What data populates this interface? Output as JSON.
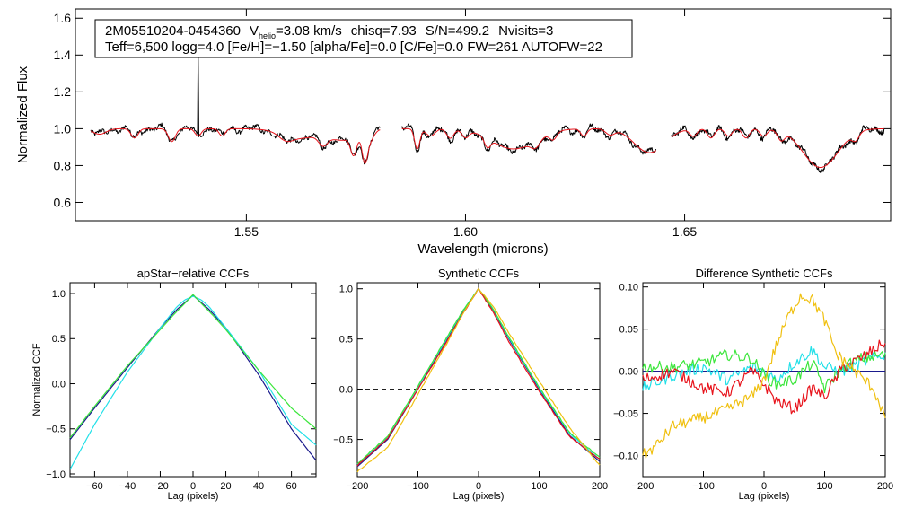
{
  "header": {
    "star_id": "2M05510204-0454360",
    "vhelio_symbol": "V",
    "vhelio_sub": "helio",
    "vhelio_value": "=3.08 km/s",
    "chisq": "chisq=7.93",
    "snr": "S/N=499.2",
    "nvisits": "Nvisits=3",
    "params_line": "Teff=6,500 logg=4.0 [Fe/H]=−1.50 [alpha/Fe]=0.0 [C/Fe]=0.0 FW=261 AUTOFW=22"
  },
  "colors": {
    "observed": "#000000",
    "model": "#e8141c",
    "series_blue": "#1a1a8c",
    "series_cyan": "#22e0e8",
    "series_green": "#3ce63c",
    "series_red": "#e8141c",
    "series_orange": "#f0c010"
  },
  "chart_data": [
    {
      "type": "line",
      "name": "spectrum",
      "title": "",
      "xlabel": "Wavelength (microns)",
      "ylabel": "Normalized Flux",
      "xlim": [
        1.511,
        1.697
      ],
      "ylim": [
        0.5,
        1.65
      ],
      "xticks": [
        1.55,
        1.6,
        1.65
      ],
      "xtick_labels": [
        "1.55",
        "1.60",
        "1.65"
      ],
      "yticks": [
        0.6,
        0.8,
        1.0,
        1.2,
        1.4,
        1.6
      ],
      "ytick_labels": [
        "0.6",
        "0.8",
        "1.0",
        "1.2",
        "1.4",
        "1.6"
      ],
      "chips": [
        [
          1.5145,
          1.5805
        ],
        [
          1.5855,
          1.6435
        ],
        [
          1.647,
          1.6955
        ]
      ],
      "spike": {
        "x": 1.539,
        "y": 1.44
      },
      "absorption_lines": [
        {
          "x": 1.5165,
          "depth": 0.03,
          "width": 0.0015
        },
        {
          "x": 1.5245,
          "depth": 0.05,
          "width": 0.0008
        },
        {
          "x": 1.533,
          "depth": 0.07,
          "width": 0.0008
        },
        {
          "x": 1.539,
          "depth": 0.04,
          "width": 0.0007
        },
        {
          "x": 1.5445,
          "depth": 0.04,
          "width": 0.0007
        },
        {
          "x": 1.559,
          "depth": 0.03,
          "width": 0.0015
        },
        {
          "x": 1.562,
          "depth": 0.05,
          "width": 0.004
        },
        {
          "x": 1.5675,
          "depth": 0.05,
          "width": 0.001
        },
        {
          "x": 1.572,
          "depth": 0.06,
          "width": 0.0035
        },
        {
          "x": 1.5745,
          "depth": 0.1,
          "width": 0.0007
        },
        {
          "x": 1.577,
          "depth": 0.13,
          "width": 0.0006
        },
        {
          "x": 1.578,
          "depth": 0.06,
          "width": 0.001
        },
        {
          "x": 1.589,
          "depth": 0.11,
          "width": 0.0006
        },
        {
          "x": 1.592,
          "depth": 0.04,
          "width": 0.001
        },
        {
          "x": 1.5965,
          "depth": 0.05,
          "width": 0.0008
        },
        {
          "x": 1.6,
          "depth": 0.04,
          "width": 0.0008
        },
        {
          "x": 1.605,
          "depth": 0.05,
          "width": 0.0007
        },
        {
          "x": 1.611,
          "depth": 0.11,
          "width": 0.005
        },
        {
          "x": 1.616,
          "depth": 0.04,
          "width": 0.001
        },
        {
          "x": 1.62,
          "depth": 0.04,
          "width": 0.0008
        },
        {
          "x": 1.627,
          "depth": 0.04,
          "width": 0.0007
        },
        {
          "x": 1.633,
          "depth": 0.03,
          "width": 0.001
        },
        {
          "x": 1.642,
          "depth": 0.13,
          "width": 0.0035
        },
        {
          "x": 1.652,
          "depth": 0.04,
          "width": 0.0008
        },
        {
          "x": 1.656,
          "depth": 0.05,
          "width": 0.0008
        },
        {
          "x": 1.66,
          "depth": 0.04,
          "width": 0.0008
        },
        {
          "x": 1.664,
          "depth": 0.05,
          "width": 0.0008
        },
        {
          "x": 1.668,
          "depth": 0.04,
          "width": 0.0008
        },
        {
          "x": 1.672,
          "depth": 0.05,
          "width": 0.0008
        },
        {
          "x": 1.681,
          "depth": 0.21,
          "width": 0.004
        },
        {
          "x": 1.689,
          "depth": 0.04,
          "width": 0.0008
        }
      ],
      "series": [
        {
          "name": "observed",
          "color_key": "observed",
          "noise": 0.012
        },
        {
          "name": "model",
          "color_key": "model",
          "noise": 0.0
        }
      ]
    },
    {
      "type": "line",
      "name": "apstar_ccf",
      "title": "apStar−relative CCFs",
      "xlabel": "Lag (pixels)",
      "ylabel": "Normalized CCF",
      "xlim": [
        -75,
        75
      ],
      "ylim": [
        -1.03,
        1.12
      ],
      "xticks": [
        -60,
        -40,
        -20,
        0,
        20,
        40,
        60
      ],
      "xtick_labels": [
        "−60",
        "−40",
        "−20",
        "0",
        "20",
        "40",
        "60"
      ],
      "yticks": [
        -1.0,
        -0.5,
        0.0,
        0.5,
        1.0
      ],
      "ytick_labels": [
        "−1.0",
        "−0.5",
        "0.0",
        "0.5",
        "1.0"
      ],
      "series": [
        {
          "name": "blue",
          "color_key": "series_blue",
          "x": [
            -75,
            -60,
            -40,
            -20,
            -10,
            -5,
            0,
            5,
            10,
            20,
            40,
            60,
            75
          ],
          "y": [
            -0.62,
            -0.27,
            0.18,
            0.62,
            0.82,
            0.9,
            0.98,
            0.9,
            0.82,
            0.62,
            0.1,
            -0.5,
            -0.85
          ]
        },
        {
          "name": "cyan",
          "color_key": "series_cyan",
          "x": [
            -75,
            -60,
            -40,
            -20,
            -10,
            -5,
            0,
            5,
            10,
            20,
            40,
            60,
            75
          ],
          "y": [
            -0.95,
            -0.45,
            0.13,
            0.62,
            0.85,
            0.93,
            0.97,
            0.93,
            0.85,
            0.62,
            0.15,
            -0.45,
            -0.68
          ]
        },
        {
          "name": "green",
          "color_key": "series_green",
          "x": [
            -75,
            -60,
            -40,
            -20,
            -10,
            -5,
            0,
            5,
            10,
            20,
            40,
            60,
            75
          ],
          "y": [
            -0.6,
            -0.25,
            0.2,
            0.6,
            0.8,
            0.89,
            0.99,
            0.89,
            0.8,
            0.6,
            0.15,
            -0.27,
            -0.5
          ]
        }
      ]
    },
    {
      "type": "line",
      "name": "synthetic_ccf",
      "title": "Synthetic CCFs",
      "xlabel": "Lag (pixels)",
      "ylabel": "",
      "xlim": [
        -200,
        200
      ],
      "ylim": [
        -0.87,
        1.06
      ],
      "xticks": [
        -200,
        -100,
        0,
        100,
        200
      ],
      "xtick_labels": [
        "−200",
        "−100",
        "0",
        "100",
        "200"
      ],
      "yticks": [
        -0.5,
        0.0,
        0.5,
        1.0
      ],
      "ytick_labels": [
        "−0.5",
        "0.0",
        "0.5",
        "1.0"
      ],
      "zero_line": 0.0,
      "series": [
        {
          "name": "blue",
          "color_key": "series_blue",
          "x": [
            -200,
            -150,
            -100,
            -50,
            -25,
            0,
            25,
            50,
            100,
            150,
            200
          ],
          "y": [
            -0.77,
            -0.5,
            0.0,
            0.52,
            0.78,
            1.0,
            0.78,
            0.5,
            0.0,
            -0.46,
            -0.72
          ]
        },
        {
          "name": "cyan",
          "color_key": "series_cyan",
          "x": [
            -200,
            -150,
            -100,
            -50,
            -25,
            0,
            25,
            50,
            100,
            150,
            200
          ],
          "y": [
            -0.75,
            -0.48,
            0.02,
            0.53,
            0.79,
            1.0,
            0.79,
            0.51,
            0.01,
            -0.44,
            -0.7
          ]
        },
        {
          "name": "green",
          "color_key": "series_green",
          "x": [
            -200,
            -150,
            -100,
            -50,
            -25,
            0,
            25,
            50,
            100,
            150,
            200
          ],
          "y": [
            -0.74,
            -0.47,
            0.03,
            0.54,
            0.79,
            1.0,
            0.79,
            0.52,
            0.02,
            -0.43,
            -0.68
          ]
        },
        {
          "name": "red",
          "color_key": "series_red",
          "x": [
            -200,
            -150,
            -100,
            -50,
            -25,
            0,
            25,
            50,
            100,
            150,
            200
          ],
          "y": [
            -0.76,
            -0.49,
            0.0,
            0.5,
            0.76,
            1.0,
            0.76,
            0.47,
            -0.02,
            -0.47,
            -0.7
          ]
        },
        {
          "name": "orange",
          "color_key": "series_orange",
          "x": [
            -200,
            -150,
            -100,
            -50,
            -25,
            0,
            25,
            50,
            100,
            150,
            200
          ],
          "y": [
            -0.82,
            -0.58,
            -0.05,
            0.48,
            0.76,
            1.0,
            0.82,
            0.56,
            0.08,
            -0.38,
            -0.76
          ]
        }
      ]
    },
    {
      "type": "line",
      "name": "difference_ccf",
      "title": "Difference Synthetic CCFs",
      "xlabel": "Lag (pixels)",
      "ylabel": "",
      "xlim": [
        -200,
        200
      ],
      "ylim": [
        -0.125,
        0.105
      ],
      "xticks": [
        -200,
        -100,
        0,
        100,
        200
      ],
      "xtick_labels": [
        "−200",
        "−100",
        "0",
        "100",
        "200"
      ],
      "yticks": [
        -0.1,
        -0.05,
        0.0,
        0.05,
        0.1
      ],
      "ytick_labels": [
        "−0.10",
        "−0.05",
        "0.00",
        "0.05",
        "0.10"
      ],
      "series": [
        {
          "name": "blue",
          "color_key": "series_blue",
          "x": [
            -200,
            200
          ],
          "y": [
            0.0,
            0.0
          ]
        },
        {
          "name": "cyan",
          "color_key": "series_cyan",
          "x": [
            -200,
            -150,
            -100,
            -60,
            -20,
            0,
            20,
            50,
            80,
            100,
            130,
            160,
            200
          ],
          "y": [
            -0.02,
            -0.005,
            0.005,
            -0.01,
            0.005,
            0.0,
            -0.01,
            0.01,
            0.025,
            0.005,
            0.0,
            0.01,
            0.02
          ]
        },
        {
          "name": "green",
          "color_key": "series_green",
          "x": [
            -200,
            -150,
            -100,
            -60,
            -20,
            0,
            20,
            50,
            80,
            100,
            130,
            160,
            200
          ],
          "y": [
            0.005,
            0.005,
            0.01,
            0.02,
            0.015,
            -0.005,
            -0.015,
            -0.01,
            0.01,
            -0.02,
            0.005,
            0.015,
            0.02
          ]
        },
        {
          "name": "red",
          "color_key": "series_red",
          "x": [
            -200,
            -150,
            -100,
            -60,
            -20,
            0,
            20,
            50,
            80,
            100,
            130,
            160,
            200
          ],
          "y": [
            -0.01,
            0.0,
            -0.02,
            -0.025,
            0.0,
            -0.015,
            -0.035,
            -0.045,
            -0.02,
            -0.03,
            0.005,
            0.015,
            0.035
          ]
        },
        {
          "name": "orange",
          "color_key": "series_orange",
          "x": [
            -200,
            -180,
            -150,
            -100,
            -60,
            -20,
            0,
            20,
            40,
            60,
            80,
            100,
            120,
            150,
            180,
            200
          ],
          "y": [
            -0.1,
            -0.09,
            -0.065,
            -0.055,
            -0.045,
            -0.03,
            -0.01,
            0.03,
            0.065,
            0.09,
            0.085,
            0.06,
            0.02,
            0.0,
            -0.02,
            -0.055
          ]
        }
      ]
    }
  ]
}
